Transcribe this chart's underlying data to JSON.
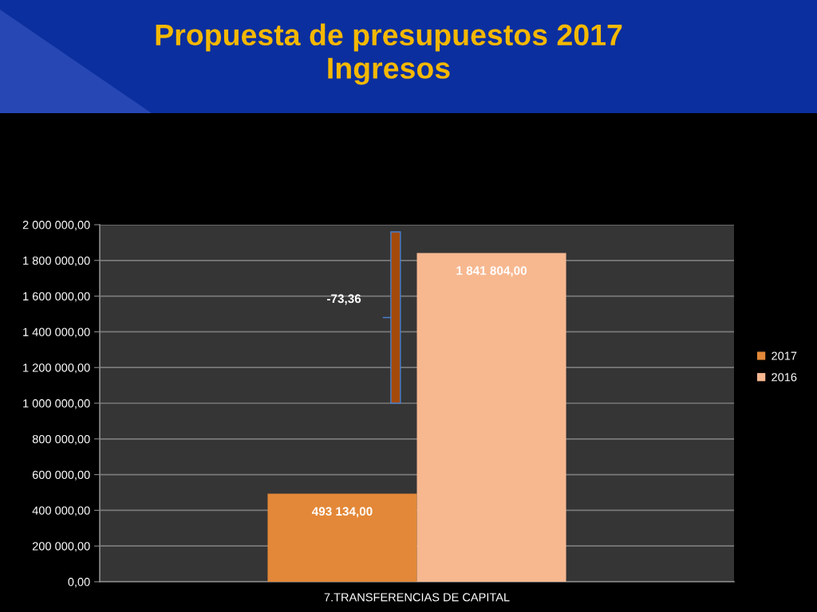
{
  "chart_data": {
    "type": "bar",
    "title": "Propuesta de presupuestos 2017\nIngresos",
    "categories": [
      "7.TRANSFERENCIAS DE CAPITAL"
    ],
    "series": [
      {
        "name": "2017",
        "color": "#e38838",
        "values": [
          493134.0
        ],
        "value_labels": [
          "493 134,00"
        ]
      },
      {
        "name": "2016",
        "color": "#f7b890",
        "values": [
          1841804.0
        ],
        "value_labels": [
          "1 841 804,00"
        ]
      }
    ],
    "ylim": [
      0,
      2000000
    ],
    "yticks": [
      {
        "value": 0,
        "label": "0,00"
      },
      {
        "value": 200000,
        "label": "200 000,00"
      },
      {
        "value": 400000,
        "label": "400 000,00"
      },
      {
        "value": 600000,
        "label": "600 000,00"
      },
      {
        "value": 800000,
        "label": "800 000,00"
      },
      {
        "value": 1000000,
        "label": "1 000 000,00"
      },
      {
        "value": 1200000,
        "label": "1 200 000,00"
      },
      {
        "value": 1400000,
        "label": "1 400 000,00"
      },
      {
        "value": 1600000,
        "label": "1 600 000,00"
      },
      {
        "value": 1800000,
        "label": "1 800 000,00"
      },
      {
        "value": 2000000,
        "label": "2 000 000,00"
      }
    ],
    "annotations": [
      "-73,36"
    ],
    "grid": "y",
    "legend": "right"
  }
}
